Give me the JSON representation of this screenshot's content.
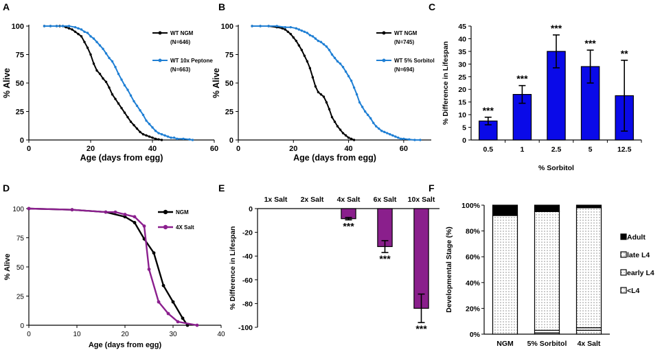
{
  "figure": {
    "colors": {
      "black": "#000000",
      "blue": "#1f7fd4",
      "bar_blue": "#0a0ae8",
      "purple": "#8b1f8e",
      "bar_purple": "#8a1f8c"
    }
  },
  "chart_data": [
    {
      "panel": "A",
      "type": "line",
      "xlabel": "Age (days from egg)",
      "ylabel": "% Alive",
      "xlim": [
        0,
        60
      ],
      "ylim": [
        0,
        100
      ],
      "xticks": [
        0,
        20,
        40,
        60
      ],
      "yticks": [
        0,
        25,
        50,
        75,
        100
      ],
      "series": [
        {
          "name": "WT NGM",
          "legend_n": "(N=646)",
          "color": "#000000",
          "x": [
            5,
            7,
            9,
            10,
            11,
            12,
            13,
            14,
            15,
            16,
            17,
            18,
            19,
            20,
            21,
            22,
            23,
            24,
            25,
            26,
            27,
            28,
            29,
            30,
            31,
            32,
            33,
            34,
            35,
            36,
            37,
            38,
            39,
            40,
            41,
            42,
            43
          ],
          "y": [
            100,
            100,
            100,
            100,
            100,
            99,
            98,
            97,
            95,
            93,
            91,
            86,
            81,
            75,
            67,
            61,
            58,
            54,
            51,
            46,
            40,
            36,
            32,
            28,
            24,
            20,
            16,
            13,
            10,
            7,
            5,
            4,
            3,
            2,
            1,
            0.5,
            0
          ]
        },
        {
          "name": "WT 10x Peptone",
          "legend_n": "(N=663)",
          "color": "#1f7fd4",
          "x": [
            5,
            7,
            9,
            11,
            13,
            15,
            16,
            17,
            18,
            19,
            20,
            21,
            22,
            23,
            24,
            25,
            26,
            27,
            28,
            29,
            30,
            31,
            32,
            33,
            34,
            35,
            36,
            37,
            38,
            39,
            40,
            41,
            42,
            43,
            44,
            45,
            46,
            47,
            48,
            50,
            52,
            53
          ],
          "y": [
            100,
            100,
            100,
            100,
            100,
            99,
            98,
            97,
            95,
            94,
            91,
            89,
            86,
            83,
            80,
            76,
            72,
            69,
            64,
            58,
            53,
            48,
            44,
            39,
            34,
            30,
            26,
            22,
            17,
            14,
            11,
            8,
            6,
            5,
            4,
            3,
            2,
            2,
            1,
            1,
            0.5,
            0
          ]
        }
      ]
    },
    {
      "panel": "B",
      "type": "line",
      "xlabel": "Age (days from egg)",
      "ylabel": "% Alive",
      "xlim": [
        0,
        70
      ],
      "ylim": [
        0,
        100
      ],
      "xticks": [
        0,
        20,
        40,
        60
      ],
      "yticks": [
        0,
        25,
        50,
        75,
        100
      ],
      "series": [
        {
          "name": "WT NGM",
          "legend_n": "(N=745)",
          "color": "#000000",
          "x": [
            5,
            8,
            11,
            14,
            16,
            17,
            18,
            19,
            20,
            21,
            22,
            23,
            24,
            25,
            26,
            27,
            28,
            29,
            30,
            31,
            32,
            33,
            34,
            35,
            36,
            37,
            38,
            39,
            40,
            41,
            42
          ],
          "y": [
            100,
            100,
            100,
            99,
            98,
            97,
            95,
            93,
            90,
            87,
            83,
            79,
            74,
            69,
            63,
            55,
            47,
            42,
            40,
            38,
            33,
            27,
            20,
            16,
            12,
            9,
            6,
            4,
            2,
            1,
            0
          ]
        },
        {
          "name": "WT 5% Sorbitol",
          "legend_n": "(N=694)",
          "color": "#1f7fd4",
          "x": [
            5,
            8,
            11,
            14,
            17,
            19,
            21,
            22,
            23,
            24,
            25,
            26,
            27,
            28,
            29,
            30,
            31,
            32,
            33,
            34,
            35,
            36,
            37,
            38,
            39,
            40,
            41,
            42,
            43,
            44,
            45,
            46,
            47,
            48,
            49,
            50,
            51,
            52,
            53,
            54,
            55,
            56,
            57,
            58,
            59,
            60,
            62,
            64,
            66
          ],
          "y": [
            100,
            100,
            100,
            100,
            99,
            99,
            98,
            97,
            96,
            95,
            94,
            92,
            91,
            89,
            87,
            86,
            84,
            82,
            79,
            75,
            72,
            69,
            67,
            64,
            60,
            56,
            52,
            46,
            40,
            33,
            29,
            25,
            22,
            19,
            15,
            12,
            10,
            8,
            7,
            6,
            5,
            4,
            3,
            2,
            1,
            1,
            0.5,
            0,
            0
          ]
        }
      ]
    },
    {
      "panel": "C",
      "type": "bar",
      "title": "",
      "xlabel": "% Sorbitol",
      "ylabel": "% Difference in Lifespan",
      "categories": [
        "0.5",
        "1",
        "2.5",
        "5",
        "12.5"
      ],
      "values": [
        7.5,
        18,
        35,
        29,
        17.5
      ],
      "errors": [
        1.5,
        3.5,
        6.5,
        6.5,
        14
      ],
      "significance": [
        "***",
        "***",
        "***",
        "***",
        "**"
      ],
      "ylim": [
        0,
        45
      ],
      "yticks": [
        0,
        5,
        10,
        15,
        20,
        25,
        30,
        35,
        40,
        45
      ],
      "color": "#0a0ae8"
    },
    {
      "panel": "D",
      "type": "line",
      "xlabel": "Age (days from egg)",
      "ylabel": "% Alive",
      "xlim": [
        0,
        40
      ],
      "ylim": [
        0,
        100
      ],
      "xticks": [
        0,
        10,
        20,
        30,
        40
      ],
      "yticks": [
        0,
        25,
        50,
        75,
        100
      ],
      "series": [
        {
          "name": "NGM",
          "color": "#000000",
          "x": [
            0,
            9,
            16,
            20,
            22,
            24,
            26,
            28,
            30,
            32,
            33
          ],
          "y": [
            100,
            99,
            97,
            93,
            88,
            74,
            62,
            34,
            20,
            6,
            0
          ]
        },
        {
          "name": "4X Salt",
          "color": "#8b1f8e",
          "x": [
            0,
            9,
            16,
            18,
            20,
            22,
            24,
            25,
            27,
            29,
            31,
            35
          ],
          "y": [
            100,
            99,
            97,
            97,
            95,
            93,
            85,
            48,
            20,
            10,
            3,
            0
          ]
        }
      ]
    },
    {
      "panel": "E",
      "type": "bar",
      "xlabel": "",
      "ylabel": "% Difference in Lifespan",
      "categories": [
        "1x Salt",
        "2x Salt",
        "4x Salt",
        "6x Salt",
        "10x Salt"
      ],
      "values": [
        0,
        0,
        -8.5,
        -32,
        -84
      ],
      "errors": [
        0,
        0,
        1,
        5,
        12
      ],
      "significance": [
        "",
        "",
        "***",
        "***",
        "***"
      ],
      "ylim": [
        -100,
        0
      ],
      "yticks": [
        0,
        -20,
        -40,
        -60,
        -80,
        -100
      ],
      "color": "#8a1f8c"
    },
    {
      "panel": "F",
      "type": "bar",
      "stacked": true,
      "xlabel": "",
      "ylabel": "Developmental Stage (%)",
      "categories": [
        "NGM",
        "5% Sorbitol",
        "4x Salt"
      ],
      "series": [
        {
          "name": "<L4",
          "values": [
            0,
            1,
            3
          ]
        },
        {
          "name": "early L4",
          "values": [
            0,
            2,
            2
          ]
        },
        {
          "name": "late L4",
          "values": [
            92,
            92,
            93
          ]
        },
        {
          "name": "Adult",
          "values": [
            8,
            5,
            2
          ]
        }
      ],
      "legend_order": [
        "Adult",
        "late L4",
        "early L4",
        "<L4"
      ],
      "ylim": [
        0,
        100
      ],
      "yticks": [
        "0%",
        "20%",
        "40%",
        "60%",
        "80%",
        "100%"
      ]
    }
  ]
}
